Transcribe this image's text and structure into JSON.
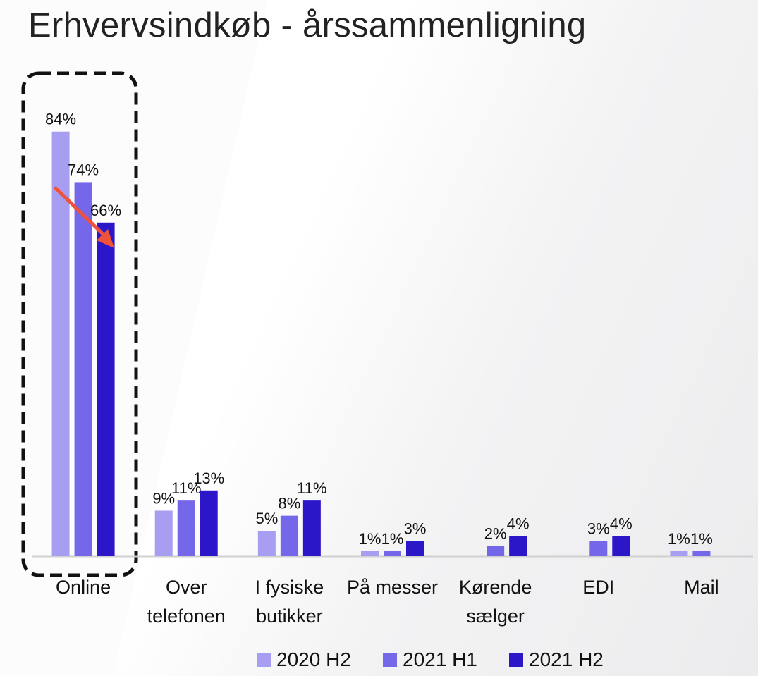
{
  "chart_data": {
    "type": "bar",
    "title": "Erhvervsindkøb - årssammenligning",
    "categories": [
      "Online",
      "Over telefonen",
      "I fysiske butikker",
      "På messer",
      "Kørende sælger",
      "EDI",
      "Mail"
    ],
    "category_lines": [
      [
        "Online"
      ],
      [
        "Over",
        "telefonen"
      ],
      [
        "I fysiske",
        "butikker"
      ],
      [
        "På messer"
      ],
      [
        "Kørende",
        "sælger"
      ],
      [
        "EDI"
      ],
      [
        "Mail"
      ]
    ],
    "series": [
      {
        "name": "2020 H2",
        "color": "#a79ef1",
        "values": [
          84,
          9,
          5,
          1,
          null,
          null,
          1
        ],
        "labels": [
          "84%",
          "9%",
          "5%",
          "1%",
          "",
          "",
          "1%"
        ]
      },
      {
        "name": "2021 H1",
        "color": "#7567ea",
        "values": [
          74,
          11,
          8,
          1,
          2,
          3,
          1
        ],
        "labels": [
          "74%",
          "11%",
          "8%",
          "1%",
          "2%",
          "3%",
          "1%"
        ]
      },
      {
        "name": "2021 H2",
        "color": "#2c17c8",
        "values": [
          66,
          13,
          11,
          3,
          4,
          4,
          null
        ],
        "labels": [
          "66%",
          "13%",
          "11%",
          "3%",
          "4%",
          "4%",
          ""
        ]
      }
    ],
    "ylim": [
      0,
      90
    ],
    "grid": false,
    "legend_position": "bottom",
    "annotations": [
      {
        "type": "dashed-box",
        "target": "Online"
      },
      {
        "type": "arrow",
        "color": "#f0513a",
        "target": "Online"
      }
    ]
  }
}
